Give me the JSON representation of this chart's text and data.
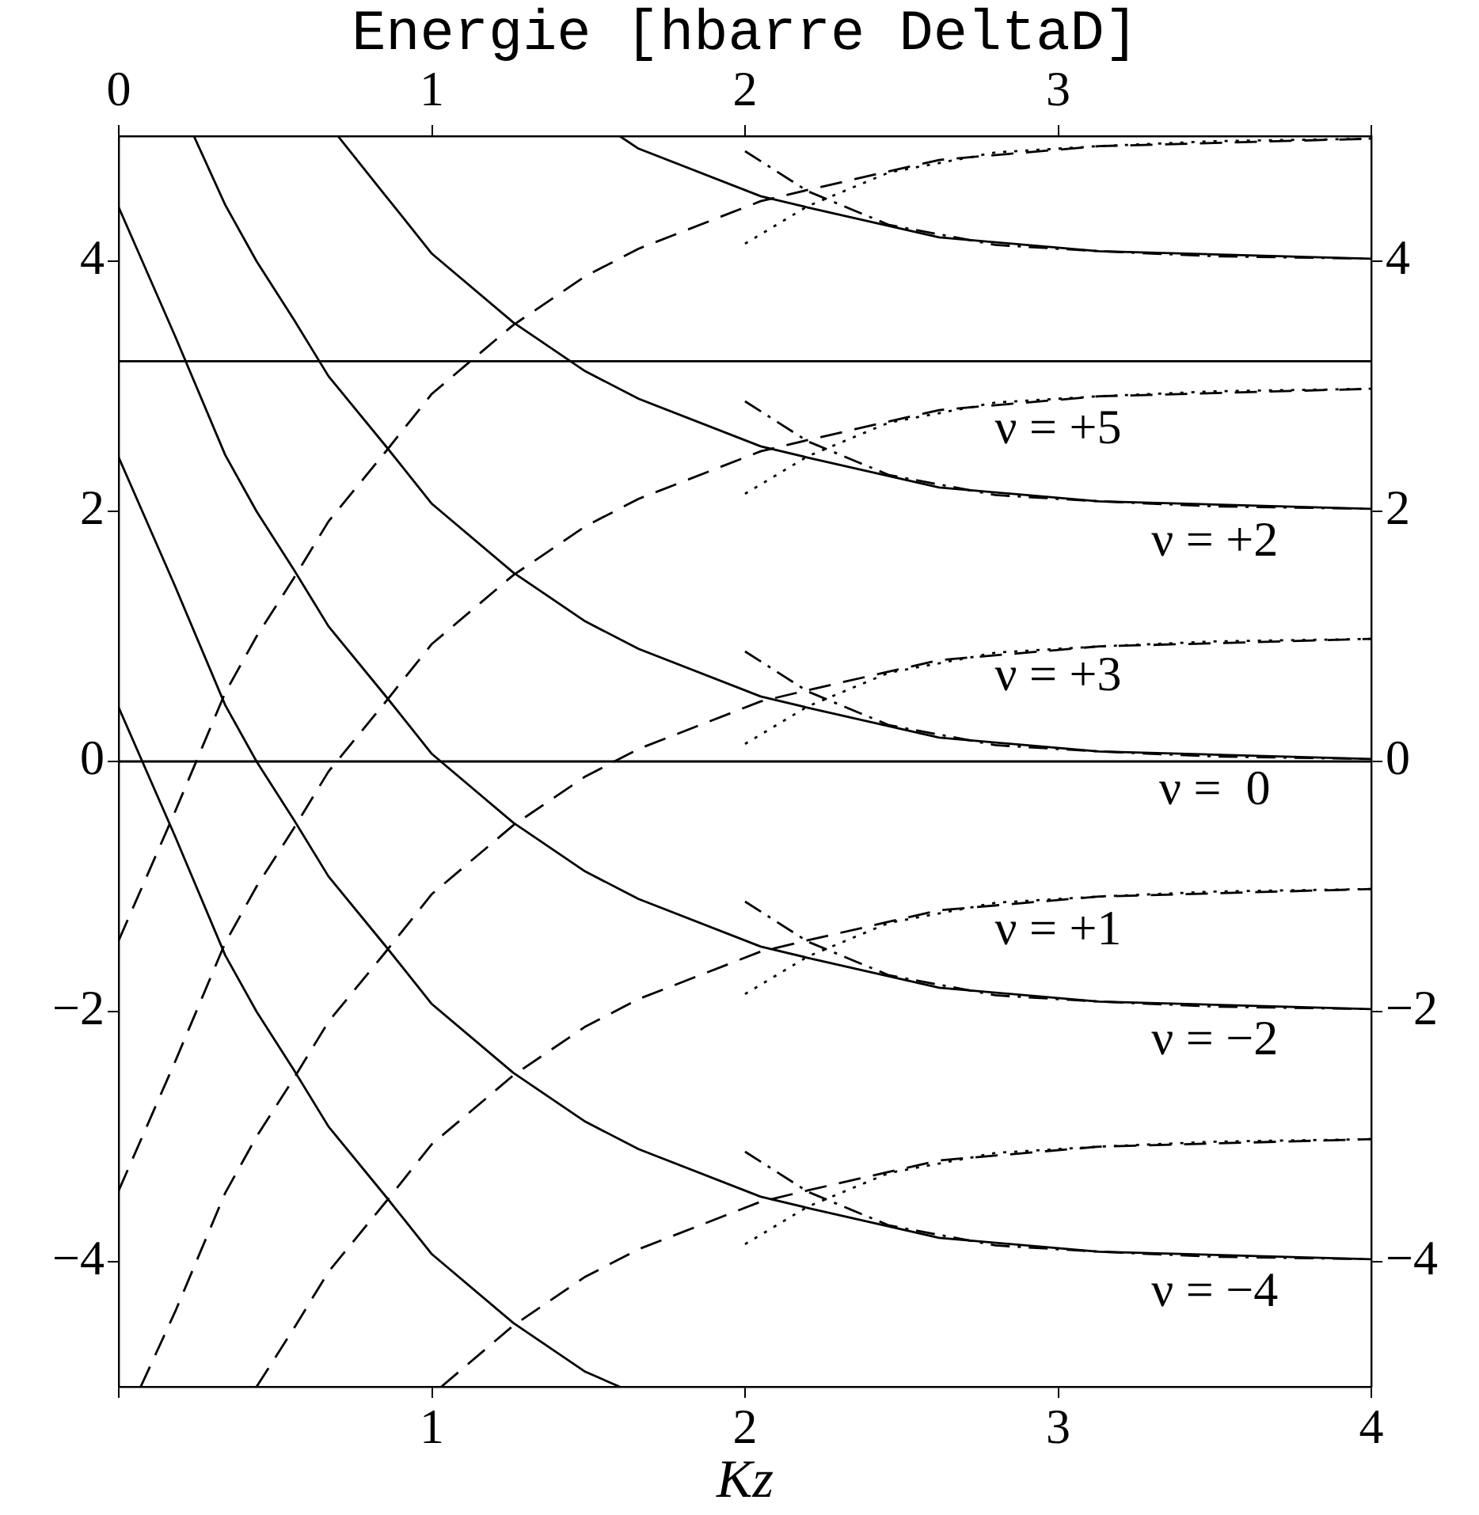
{
  "chart_data": {
    "type": "line",
    "xlabel": "Kz",
    "x2label": "Energie [hbarre DeltaD]",
    "xlim": [
      0,
      4
    ],
    "xticks": [
      {
        "value": 0,
        "label": null
      },
      1,
      2,
      3,
      4
    ],
    "x2lim": [
      0,
      4
    ],
    "x2ticks": [
      0,
      1,
      2,
      3,
      {
        "value": 4,
        "label": null
      }
    ],
    "ylim": [
      -5,
      5
    ],
    "yticks": [
      -4,
      -2,
      0,
      2,
      4
    ],
    "y2lim": [
      -5,
      5
    ],
    "y2ticks": [
      -4,
      -2,
      0,
      2,
      4
    ],
    "grid": false,
    "legend": false,
    "marker": "none",
    "ref_lines": [
      {
        "axis": "y",
        "value": 3.2,
        "color": "#000000"
      },
      {
        "axis": "y",
        "value": 0,
        "color": "#000000"
      }
    ],
    "series": [
      {
        "color": "#000000",
        "line_style": "solid",
        "x": [
          1.6,
          1.66,
          2.05,
          2.2,
          2.62,
          3.13,
          4
        ],
        "values": [
          5.0,
          4.9,
          4.52,
          4.43,
          4.19,
          4.08,
          4.02
        ]
      },
      {
        "color": "#000000",
        "line_style": "solid",
        "x": [
          0.7,
          0.85,
          1.0,
          1.26,
          1.49,
          1.66,
          2.05,
          2.2,
          2.62,
          3.13,
          4
        ],
        "values": [
          5.0,
          4.53,
          4.06,
          3.51,
          3.12,
          2.9,
          2.52,
          2.43,
          2.19,
          2.08,
          2.02
        ]
      },
      {
        "color": "#000000",
        "line_style": "solid",
        "x": [
          0.24,
          0.34,
          0.44,
          0.56,
          0.67,
          0.85,
          1.0,
          1.26,
          1.49,
          1.66,
          2.05,
          2.2,
          2.62,
          3.13,
          4
        ],
        "values": [
          5.0,
          4.45,
          4.0,
          3.53,
          3.08,
          2.53,
          2.06,
          1.51,
          1.12,
          0.9,
          0.52,
          0.43,
          0.19,
          0.08,
          0.02
        ]
      },
      {
        "color": "#000000",
        "line_style": "solid",
        "x": [
          0,
          0.18,
          0.34,
          0.44,
          0.56,
          0.67,
          0.85,
          1.0,
          1.26,
          1.49,
          1.66,
          2.05,
          2.2,
          2.62,
          3.13,
          4
        ],
        "values": [
          4.43,
          3.4,
          2.45,
          2.0,
          1.53,
          1.08,
          0.53,
          0.06,
          -0.49,
          -0.88,
          -1.1,
          -1.48,
          -1.57,
          -1.81,
          -1.92,
          -1.98
        ]
      },
      {
        "color": "#000000",
        "line_style": "solid",
        "x": [
          0,
          0.18,
          0.34,
          0.44,
          0.56,
          0.67,
          0.85,
          1.0,
          1.26,
          1.49,
          1.66,
          2.05,
          2.2,
          2.62,
          3.13,
          4
        ],
        "values": [
          2.43,
          1.4,
          0.45,
          0.0,
          -0.47,
          -0.92,
          -1.47,
          -1.94,
          -2.49,
          -2.88,
          -3.1,
          -3.48,
          -3.57,
          -3.81,
          -3.92,
          -3.98
        ]
      },
      {
        "color": "#000000",
        "line_style": "solid",
        "x": [
          0,
          0.18,
          0.34,
          0.44,
          0.56,
          0.67,
          0.85,
          1.0,
          1.26,
          1.49,
          1.6
        ],
        "values": [
          0.43,
          -0.6,
          -1.55,
          -2.0,
          -2.47,
          -2.92,
          -3.47,
          -3.94,
          -4.49,
          -4.88,
          -5.0
        ]
      },
      {
        "color": "#000000",
        "line_style": "dashed",
        "x": [
          0,
          0.18,
          0.34,
          0.44,
          0.56,
          0.67,
          0.85,
          1.0,
          1.26,
          1.49,
          1.66,
          2.05,
          2.2,
          2.62,
          3.13,
          4
        ],
        "values": [
          -1.43,
          -0.4,
          0.55,
          1.0,
          1.47,
          1.92,
          2.47,
          2.94,
          3.49,
          3.88,
          4.1,
          4.48,
          4.57,
          4.81,
          4.92,
          4.98
        ]
      },
      {
        "color": "#000000",
        "line_style": "dashed",
        "x": [
          0,
          0.18,
          0.34,
          0.44,
          0.56,
          0.67,
          0.85,
          1.0,
          1.26,
          1.49,
          1.66,
          2.05,
          2.2,
          2.62,
          3.13,
          4
        ],
        "values": [
          -3.43,
          -2.4,
          -1.45,
          -1.0,
          -0.53,
          -0.08,
          0.47,
          0.94,
          1.49,
          1.88,
          2.1,
          2.48,
          2.57,
          2.81,
          2.92,
          2.98
        ]
      },
      {
        "color": "#000000",
        "line_style": "dashed",
        "x": [
          0.07,
          0.18,
          0.34,
          0.44,
          0.56,
          0.67,
          0.85,
          1.0,
          1.26,
          1.49,
          1.66,
          2.05,
          2.2,
          2.62,
          3.13,
          4
        ],
        "values": [
          -5.0,
          -4.4,
          -3.45,
          -3.0,
          -2.53,
          -2.08,
          -1.53,
          -1.06,
          -0.51,
          -0.12,
          0.1,
          0.48,
          0.57,
          0.81,
          0.92,
          0.98
        ]
      },
      {
        "color": "#000000",
        "line_style": "dashed",
        "x": [
          0.44,
          0.56,
          0.67,
          0.85,
          1.0,
          1.26,
          1.49,
          1.66,
          2.05,
          2.2,
          2.62,
          3.13,
          4
        ],
        "values": [
          -5.0,
          -4.53,
          -4.08,
          -3.53,
          -3.06,
          -2.51,
          -2.12,
          -1.9,
          -1.52,
          -1.43,
          -1.19,
          -1.08,
          -1.02
        ]
      },
      {
        "color": "#000000",
        "line_style": "dashed",
        "x": [
          1.03,
          1.26,
          1.49,
          1.66,
          2.05,
          2.2,
          2.62,
          3.13,
          4
        ],
        "values": [
          -5.0,
          -4.51,
          -4.12,
          -3.9,
          -3.52,
          -3.43,
          -3.19,
          -3.08,
          -3.02
        ]
      },
      {
        "color": "#000000",
        "line_style": "dotted",
        "x": [
          2.0,
          2.2,
          2.46,
          2.8,
          3.13,
          3.5,
          4
        ],
        "values": [
          4.14,
          4.44,
          4.71,
          4.87,
          4.92,
          4.96,
          4.98
        ]
      },
      {
        "color": "#000000",
        "line_style": "dotted",
        "x": [
          2.0,
          2.2,
          2.46,
          2.8,
          3.13,
          3.5,
          4
        ],
        "values": [
          2.14,
          2.44,
          2.71,
          2.87,
          2.92,
          2.96,
          2.98
        ]
      },
      {
        "color": "#000000",
        "line_style": "dotted",
        "x": [
          2.0,
          2.2,
          2.46,
          2.8,
          3.13,
          3.5,
          4
        ],
        "values": [
          0.14,
          0.44,
          0.71,
          0.87,
          0.92,
          0.96,
          0.98
        ]
      },
      {
        "color": "#000000",
        "line_style": "dotted",
        "x": [
          2.0,
          2.2,
          2.46,
          2.8,
          3.13,
          3.5,
          4
        ],
        "values": [
          -1.86,
          -1.56,
          -1.29,
          -1.13,
          -1.08,
          -1.04,
          -1.02
        ]
      },
      {
        "color": "#000000",
        "line_style": "dotted",
        "x": [
          2.0,
          2.2,
          2.46,
          2.8,
          3.13,
          3.5,
          4
        ],
        "values": [
          -3.86,
          -3.56,
          -3.29,
          -3.13,
          -3.08,
          -3.04,
          -3.02
        ]
      },
      {
        "color": "#000000",
        "line_style": "dashdot",
        "x": [
          2.0,
          2.2,
          2.46,
          2.8,
          3.13,
          3.5,
          4
        ],
        "values": [
          4.88,
          4.56,
          4.29,
          4.13,
          4.08,
          4.04,
          4.02
        ]
      },
      {
        "color": "#000000",
        "line_style": "dashdot",
        "x": [
          2.0,
          2.2,
          2.46,
          2.8,
          3.13,
          3.5,
          4
        ],
        "values": [
          2.88,
          2.56,
          2.29,
          2.13,
          2.08,
          2.04,
          2.02
        ]
      },
      {
        "color": "#000000",
        "line_style": "dashdot",
        "x": [
          2.0,
          2.2,
          2.46,
          2.8,
          3.13,
          3.5,
          4
        ],
        "values": [
          0.88,
          0.56,
          0.29,
          0.13,
          0.08,
          0.04,
          0.02
        ]
      },
      {
        "color": "#000000",
        "line_style": "dashdot",
        "x": [
          2.0,
          2.2,
          2.46,
          2.8,
          3.13,
          3.5,
          4
        ],
        "values": [
          -1.12,
          -1.44,
          -1.71,
          -1.87,
          -1.92,
          -1.96,
          -1.98
        ]
      },
      {
        "color": "#000000",
        "line_style": "dashdot",
        "x": [
          2.0,
          2.2,
          2.46,
          2.8,
          3.13,
          3.5,
          4
        ],
        "values": [
          -3.12,
          -3.44,
          -3.71,
          -3.87,
          -3.92,
          -3.96,
          -3.98
        ]
      }
    ],
    "annotations": [
      "ν = +5",
      "ν = +2",
      "ν = +3",
      "ν =  0",
      "ν = +1",
      "ν = −2",
      "ν = −4"
    ]
  }
}
